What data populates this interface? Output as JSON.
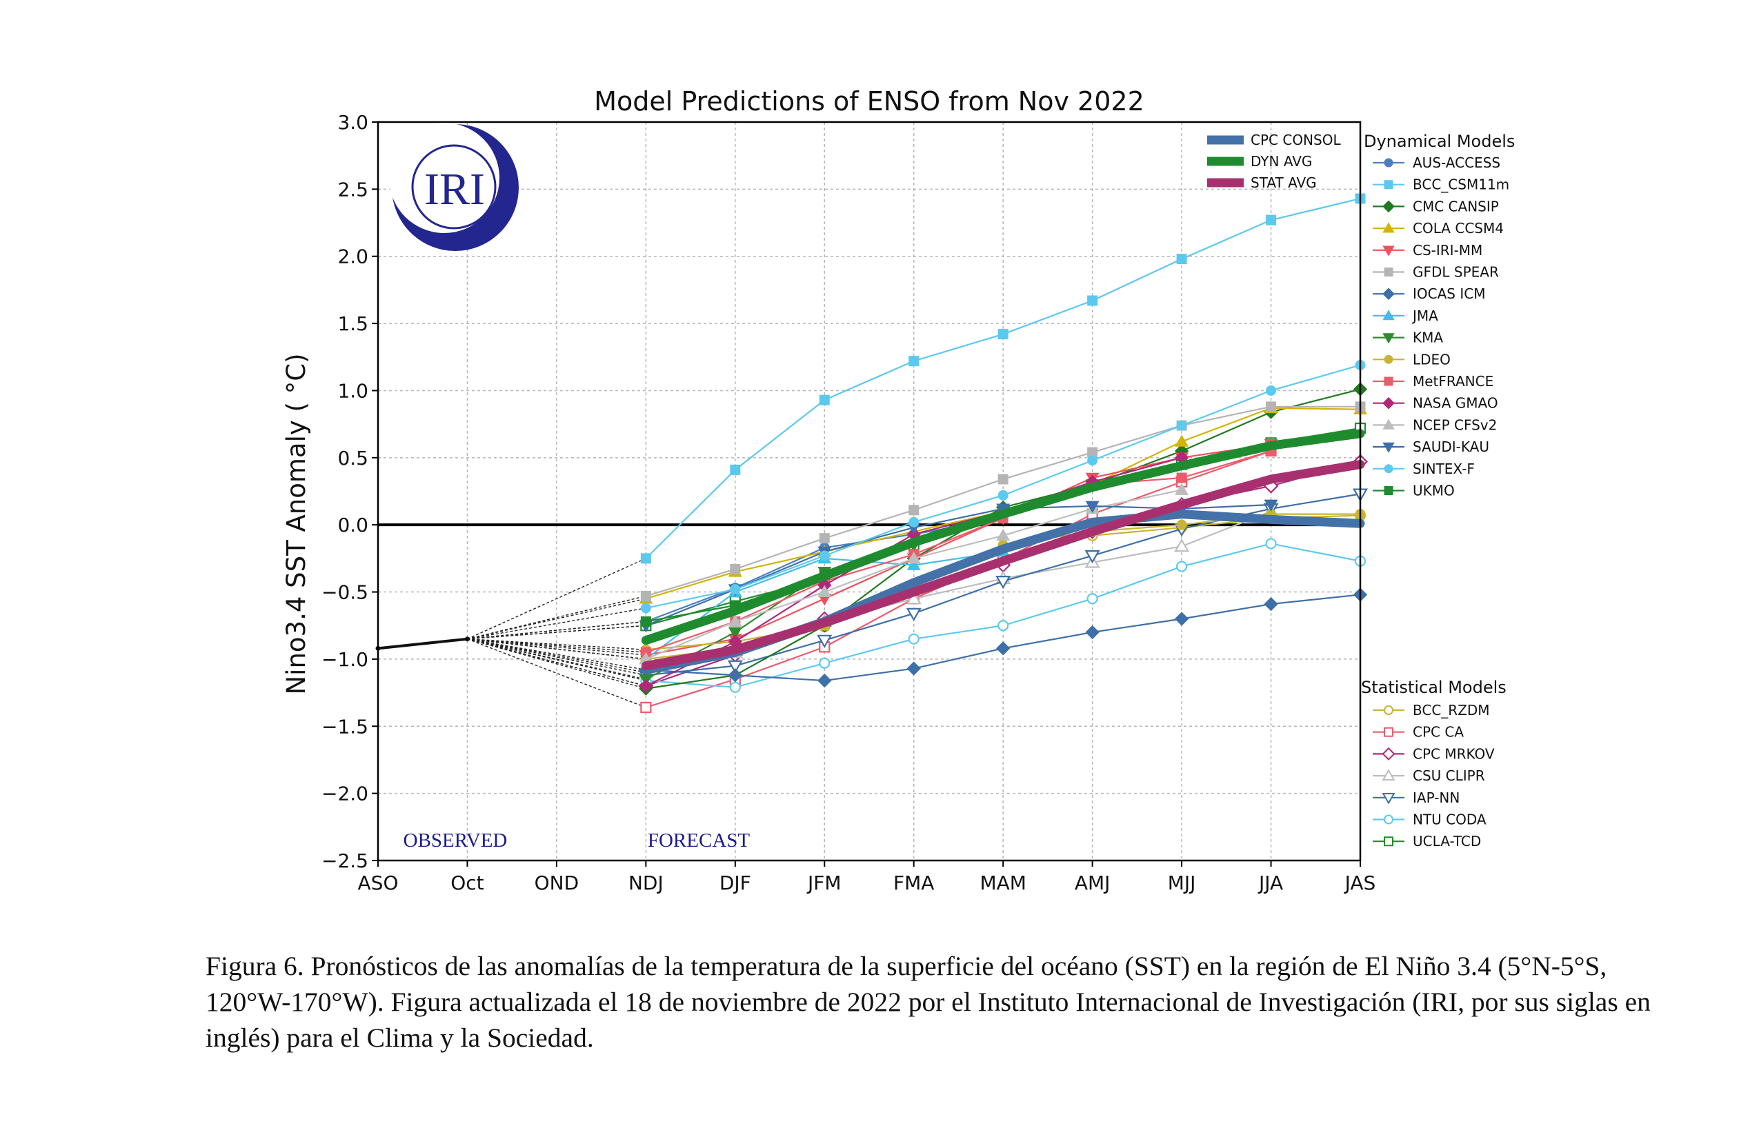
{
  "chart_data": {
    "type": "line",
    "title": "Model Predictions of ENSO from Nov 2022",
    "ylabel": "Nino3.4 SST Anomaly ( °C)",
    "xlabel": "",
    "categories": [
      "ASO",
      "Oct",
      "OND",
      "NDJ",
      "DJF",
      "JFM",
      "FMA",
      "MAM",
      "AMJ",
      "MJJ",
      "JJA",
      "JAS"
    ],
    "ylim": [
      -2.5,
      3.0
    ],
    "yticks": [
      "3.0",
      "2.5",
      "2.0",
      "1.5",
      "1.0",
      "0.5",
      "0.0",
      "−0.5",
      "−1.0",
      "−1.5",
      "−2.0",
      "−2.5"
    ],
    "grid": true,
    "legend_position": "right",
    "annotations": {
      "observed": "OBSERVED",
      "forecast": "FORECAST",
      "logo": "IRI"
    },
    "observed": [
      -0.92,
      -0.85
    ],
    "averages": [
      {
        "name": "CPC CONSOL",
        "color": "#4472a8",
        "values": [
          -1.08,
          -0.95,
          -0.72,
          -0.43,
          -0.18,
          0.02,
          0.08,
          0.04,
          0.01
        ]
      },
      {
        "name": "DYN AVG",
        "color": "#1e8c2e",
        "values": [
          -0.86,
          -0.64,
          -0.38,
          -0.13,
          0.08,
          0.28,
          0.44,
          0.59,
          0.68
        ]
      },
      {
        "name": "STAT AVG",
        "color": "#a8306e",
        "values": [
          -1.05,
          -0.93,
          -0.73,
          -0.5,
          -0.27,
          -0.05,
          0.15,
          0.34,
          0.45
        ]
      }
    ],
    "dynamical_legend_title": "Dynamical Models",
    "statistical_legend_title": "Statistical Models",
    "dynamical": [
      {
        "name": "AUS-ACCESS",
        "color": "#4a7fbf",
        "marker": "circle",
        "values": [
          -0.72,
          -0.47,
          -0.17,
          -0.07,
          0.05
        ]
      },
      {
        "name": "BCC_CSM11m",
        "color": "#5bc8ee",
        "marker": "square",
        "values": [
          -0.25,
          0.41,
          0.93,
          1.22,
          1.42,
          1.67,
          1.98,
          2.27,
          2.43
        ]
      },
      {
        "name": "CMC CANSIP",
        "color": "#1e7a1e",
        "marker": "diamond",
        "values": [
          -1.22,
          -1.12,
          -0.75,
          -0.25,
          0.13,
          0.3,
          0.55,
          0.84,
          1.01
        ]
      },
      {
        "name": "COLA CCSM4",
        "color": "#d4b400",
        "marker": "triangle-up",
        "values": [
          -0.55,
          -0.35,
          -0.2,
          -0.05,
          0.1,
          0.3,
          0.62,
          0.87,
          0.86
        ]
      },
      {
        "name": "CS-IRI-MM",
        "color": "#f0505a",
        "marker": "triangle-down",
        "values": [
          -0.97,
          -0.85,
          -0.55,
          -0.25,
          0.05,
          0.35,
          0.5,
          0.6
        ]
      },
      {
        "name": "GFDL SPEAR",
        "color": "#b4b4b4",
        "marker": "square",
        "values": [
          -0.53,
          -0.33,
          -0.1,
          0.11,
          0.34,
          0.54,
          0.74,
          0.88,
          0.88
        ]
      },
      {
        "name": "IOCAS ICM",
        "color": "#3d6fa8",
        "marker": "diamond",
        "values": [
          -1.08,
          -1.12,
          -1.16,
          -1.07,
          -0.92,
          -0.8,
          -0.7,
          -0.59,
          -0.52
        ]
      },
      {
        "name": "JMA",
        "color": "#3fbfe8",
        "marker": "triangle-up",
        "values": [
          -1.0,
          -0.5,
          -0.25,
          -0.3,
          -0.2
        ]
      },
      {
        "name": "KMA",
        "color": "#2e8b2e",
        "marker": "triangle-down",
        "values": [
          -1.15,
          -0.8,
          -0.35,
          -0.15,
          0.1,
          0.3
        ]
      },
      {
        "name": "LDEO",
        "color": "#c8b432",
        "marker": "circle",
        "values": [
          -0.93,
          -0.87,
          -0.75,
          -0.45,
          -0.15,
          -0.05,
          0.0,
          0.08,
          0.08
        ]
      },
      {
        "name": "MetFRANCE",
        "color": "#ee5a6a",
        "marker": "square",
        "values": [
          -0.95,
          -0.72,
          -0.42,
          -0.22,
          0.05,
          0.3,
          0.35,
          0.55
        ]
      },
      {
        "name": "NASA GMAO",
        "color": "#b0287a",
        "marker": "diamond",
        "values": [
          -1.2,
          -0.87,
          -0.45,
          -0.07,
          0.1,
          0.32,
          0.5
        ]
      },
      {
        "name": "NCEP CFSv2",
        "color": "#bdbdbd",
        "marker": "triangle-up",
        "values": [
          -1.0,
          -0.72,
          -0.5,
          -0.25,
          -0.08,
          0.12,
          0.26
        ]
      },
      {
        "name": "SAUDI-KAU",
        "color": "#3d6fa8",
        "marker": "triangle-down",
        "values": [
          -0.75,
          -0.48,
          -0.2,
          -0.02,
          0.12,
          0.14,
          0.12,
          0.15
        ]
      },
      {
        "name": "SINTEX-F",
        "color": "#5ccaf0",
        "marker": "circle",
        "values": [
          -0.62,
          -0.48,
          -0.23,
          0.02,
          0.22,
          0.48,
          0.74,
          1.0,
          1.19
        ]
      },
      {
        "name": "UKMO",
        "color": "#1e8c2e",
        "marker": "square",
        "values": [
          -0.72,
          -0.6,
          -0.37
        ]
      }
    ],
    "statistical": [
      {
        "name": "BCC_RZDM",
        "color": "#c8b432",
        "marker": "circle",
        "values": [
          -1.0,
          -0.92,
          -0.76,
          -0.5,
          -0.27,
          -0.08,
          -0.02,
          0.05,
          0.07
        ]
      },
      {
        "name": "CPC CA",
        "color": "#ee5a6a",
        "marker": "square",
        "values": [
          -1.36,
          -1.15,
          -0.91,
          -0.55,
          -0.26,
          0.08,
          0.32,
          0.55
        ]
      },
      {
        "name": "CPC MRKOV",
        "color": "#b0287a",
        "marker": "diamond",
        "values": [
          -1.2,
          -0.97,
          -0.7,
          -0.5,
          -0.3,
          -0.05,
          0.15,
          0.29,
          0.47
        ]
      },
      {
        "name": "CSU CLIPR",
        "color": "#bdbdbd",
        "marker": "triangle-up",
        "values": [
          -1.1,
          -0.95,
          -0.72,
          -0.55,
          -0.4,
          -0.28,
          -0.16,
          0.1
        ]
      },
      {
        "name": "IAP-NN",
        "color": "#3d6fa8",
        "marker": "triangle-down",
        "values": [
          -1.12,
          -1.05,
          -0.86,
          -0.66,
          -0.42,
          -0.23,
          -0.03,
          0.12,
          0.23
        ]
      },
      {
        "name": "NTU CODA",
        "color": "#5ccaf0",
        "marker": "circle",
        "values": [
          -1.16,
          -1.21,
          -1.03,
          -0.85,
          -0.75,
          -0.55,
          -0.31,
          -0.14,
          -0.27
        ]
      },
      {
        "name": "UCLA-TCD",
        "color": "#1e8c2e",
        "marker": "square",
        "values": [
          -0.75,
          -0.57,
          -0.4,
          -0.15,
          0.1,
          0.3,
          0.45,
          0.61,
          0.72
        ]
      }
    ]
  },
  "caption": "Figura 6. Pronósticos de las anomalías de la temperatura de la superficie del océano (SST) en la región de El Niño 3.4 (5°N-5°S, 120°W-170°W). Figura actualizada el 18 de noviembre de 2022 por el Instituto Internacional de Investigación (IRI, por sus siglas en inglés) para el Clima y la Sociedad."
}
